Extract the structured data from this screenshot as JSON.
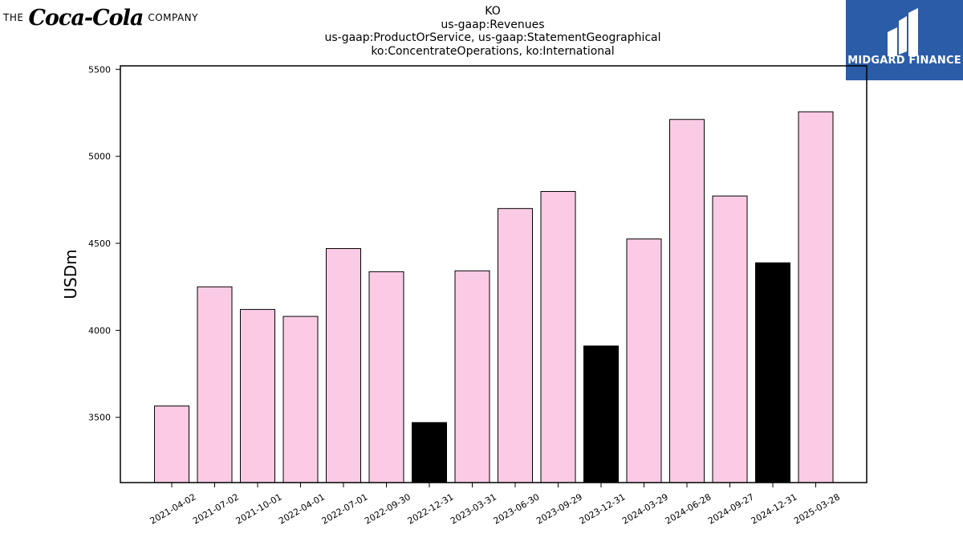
{
  "brand": {
    "prefix": "THE",
    "wordmark": "Coca-Cola",
    "suffix": "COMPANY"
  },
  "logo": {
    "text": "MIDGARD FINANCE",
    "color": "#2b5ca8"
  },
  "chart_data": {
    "type": "bar",
    "title_lines": [
      "KO",
      "us-gaap:Revenues",
      "us-gaap:ProductOrService, us-gaap:StatementGeographical",
      "ko:ConcentrateOperations, ko:International"
    ],
    "xlabel": "",
    "ylabel": "USDm",
    "ylim": [
      3125,
      5520
    ],
    "yticks": [
      3500,
      4000,
      4500,
      5000,
      5500
    ],
    "categories": [
      "2021-04-02",
      "2021-07-02",
      "2021-10-01",
      "2022-04-01",
      "2022-07-01",
      "2022-09-30",
      "2022-12-31",
      "2023-03-31",
      "2023-06-30",
      "2023-09-29",
      "2023-12-31",
      "2024-03-29",
      "2024-06-28",
      "2024-09-27",
      "2024-12-31",
      "2025-03-28"
    ],
    "values": [
      3565,
      4250,
      4120,
      4080,
      4470,
      4337,
      3470,
      4342,
      4700,
      4798,
      3910,
      4525,
      5212,
      4772,
      4388,
      5256
    ],
    "bar_colors": [
      "#fbcbe5",
      "#fbcbe5",
      "#fbcbe5",
      "#fbcbe5",
      "#fbcbe5",
      "#fbcbe5",
      "#000000",
      "#fbcbe5",
      "#fbcbe5",
      "#fbcbe5",
      "#000000",
      "#fbcbe5",
      "#fbcbe5",
      "#fbcbe5",
      "#000000",
      "#fbcbe5"
    ],
    "grid": false,
    "legend": "none"
  }
}
